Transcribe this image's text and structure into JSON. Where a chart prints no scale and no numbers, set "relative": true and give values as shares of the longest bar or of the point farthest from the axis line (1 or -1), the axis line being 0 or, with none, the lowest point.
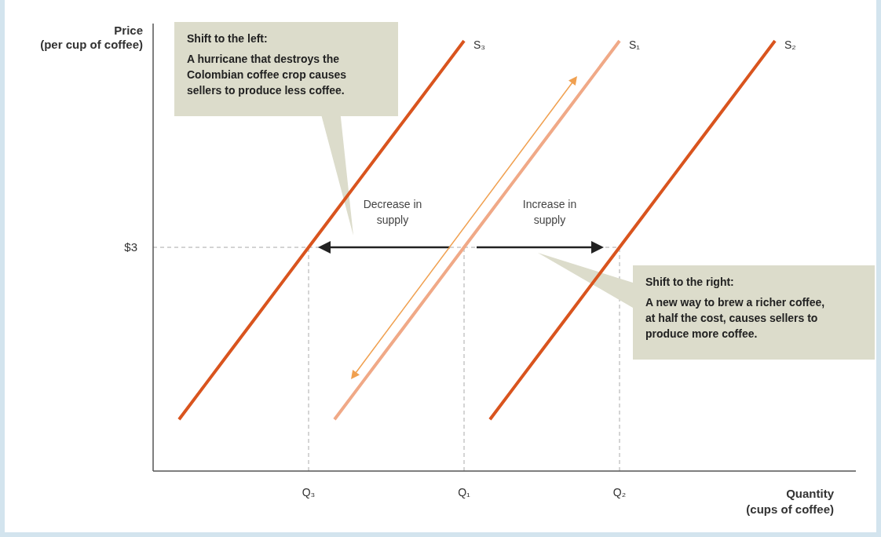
{
  "chart_data": {
    "type": "line",
    "relative": true,
    "xlabel": "Quantity\n(cups of coffee)",
    "ylabel": "Price\n(per cup of coffee)",
    "categories": [
      null,
      null,
      null,
      null,
      null,
      null,
      "Q₃",
      null,
      null,
      null,
      null,
      null,
      "Q₁",
      null,
      null,
      null,
      null,
      null,
      "Q₂",
      null,
      null,
      null,
      null,
      null,
      null,
      null,
      null,
      null
    ],
    "series": [
      {
        "name": "S₃",
        "color": "#d9541e",
        "values": [
          null,
          0.12,
          0.2,
          0.28,
          0.36,
          0.44,
          0.52,
          0.6,
          0.68,
          0.76,
          0.84,
          0.92,
          1.0,
          null,
          null,
          null,
          null,
          null,
          null,
          null,
          null,
          null,
          null,
          null,
          null,
          null,
          null,
          null
        ]
      },
      {
        "name": "S₁",
        "color": "#f0a987",
        "values": [
          null,
          null,
          null,
          null,
          null,
          null,
          null,
          0.12,
          0.2,
          0.28,
          0.36,
          0.44,
          0.52,
          0.6,
          0.68,
          0.76,
          0.84,
          0.92,
          1.0,
          null,
          null,
          null,
          null,
          null,
          null,
          null,
          null,
          null
        ]
      },
      {
        "name": "S₂",
        "color": "#d9541e",
        "values": [
          null,
          null,
          null,
          null,
          null,
          null,
          null,
          null,
          null,
          null,
          null,
          null,
          null,
          0.12,
          0.2,
          0.28,
          0.36,
          0.44,
          0.52,
          0.6,
          0.68,
          0.76,
          0.84,
          0.92,
          1.0,
          null,
          null,
          null
        ]
      }
    ],
    "ref_lines": [
      {
        "axis": "y",
        "value": 0.52,
        "line_style": "dashed"
      },
      {
        "axis": "x",
        "value": "Q₃",
        "line_style": "dashed"
      },
      {
        "axis": "x",
        "value": "Q₁",
        "line_style": "dashed"
      },
      {
        "axis": "x",
        "value": "Q₂",
        "line_style": "dashed"
      }
    ],
    "annotations": [
      "$3",
      "Shift to the left:",
      "A hurricane that destroys the Colombian coffee crop causes sellers to produce less coffee.",
      "Decrease in supply",
      "Increase in supply",
      "Shift to the right:",
      "A new way to brew a richer coffee, at half the cost, causes sellers to produce more coffee."
    ]
  }
}
